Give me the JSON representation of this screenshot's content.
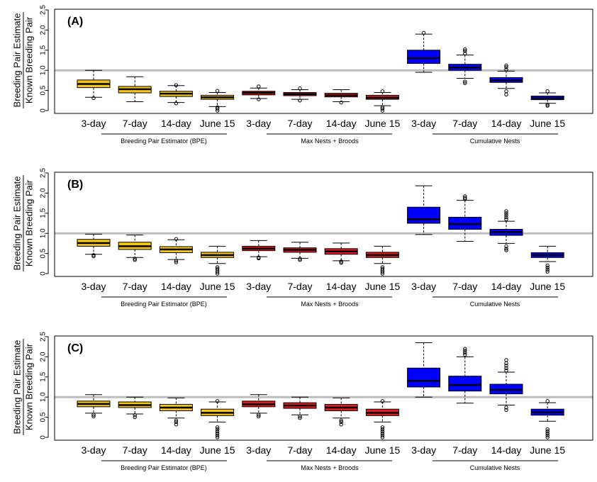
{
  "ylabel_top": "Breeding Pair Estimate",
  "ylabel_bottom": "Known Breeding Pair",
  "groups": [
    "Breeding Pair Estimator (BPE)",
    "Max Nests + Broods",
    "Cumulative Nests"
  ],
  "colors": {
    "bpe": "#f5c518",
    "max": "#e41a1c",
    "cum": "#0000ff",
    "reference_line": "#bdbdbd"
  },
  "chart_data": [
    {
      "type": "box",
      "panel": "(A)",
      "categories": [
        "3-day",
        "7-day",
        "14-day",
        "June 15",
        "3-day",
        "7-day",
        "14-day",
        "June 15",
        "3-day",
        "7-day",
        "14-day",
        "June 15"
      ],
      "ylim": [
        0,
        2.5
      ],
      "yticks": [
        "0",
        "0.5",
        "1.0",
        "1.5",
        "2.0",
        "2.5"
      ],
      "reference_line": 1.0,
      "box_colors": [
        "bpe",
        "bpe",
        "bpe",
        "bpe",
        "max",
        "max",
        "max",
        "max",
        "cum",
        "cum",
        "cum",
        "cum"
      ],
      "boxes": [
        {
          "wlo": 0.33,
          "q1": 0.57,
          "med": 0.66,
          "q3": 0.76,
          "whi": 1.0,
          "outliers": [
            0.31
          ]
        },
        {
          "wlo": 0.22,
          "q1": 0.44,
          "med": 0.53,
          "q3": 0.6,
          "whi": 0.84,
          "outliers": []
        },
        {
          "wlo": 0.2,
          "q1": 0.35,
          "med": 0.42,
          "q3": 0.48,
          "whi": 0.62,
          "outliers": [
            0.18,
            0.63
          ]
        },
        {
          "wlo": 0.1,
          "q1": 0.28,
          "med": 0.33,
          "q3": 0.38,
          "whi": 0.45,
          "outliers": [
            0.0,
            0.05,
            0.08,
            0.49
          ]
        },
        {
          "wlo": 0.3,
          "q1": 0.39,
          "med": 0.44,
          "q3": 0.48,
          "whi": 0.56,
          "outliers": [
            0.28,
            0.6
          ]
        },
        {
          "wlo": 0.28,
          "q1": 0.37,
          "med": 0.41,
          "q3": 0.45,
          "whi": 0.52,
          "outliers": [
            0.25,
            0.55
          ]
        },
        {
          "wlo": 0.22,
          "q1": 0.34,
          "med": 0.38,
          "q3": 0.43,
          "whi": 0.52,
          "outliers": [
            0.2
          ]
        },
        {
          "wlo": 0.12,
          "q1": 0.28,
          "med": 0.32,
          "q3": 0.38,
          "whi": 0.45,
          "outliers": [
            0.0,
            0.05,
            0.08,
            0.48
          ]
        },
        {
          "wlo": 0.95,
          "q1": 1.17,
          "med": 1.3,
          "q3": 1.5,
          "whi": 1.9,
          "outliers": [
            1.93
          ]
        },
        {
          "wlo": 0.8,
          "q1": 1.0,
          "med": 1.07,
          "q3": 1.15,
          "whi": 1.38,
          "outliers": [
            0.68,
            0.72,
            1.42,
            1.48,
            1.52
          ]
        },
        {
          "wlo": 0.55,
          "q1": 0.7,
          "med": 0.75,
          "q3": 0.82,
          "whi": 0.98,
          "outliers": [
            0.4,
            0.48,
            1.02,
            1.08,
            1.12
          ]
        },
        {
          "wlo": 0.18,
          "q1": 0.27,
          "med": 0.31,
          "q3": 0.36,
          "whi": 0.44,
          "outliers": [
            0.12,
            0.15,
            0.48
          ]
        }
      ]
    },
    {
      "type": "box",
      "panel": "(B)",
      "categories": [
        "3-day",
        "7-day",
        "14-day",
        "June 15",
        "3-day",
        "7-day",
        "14-day",
        "June 15",
        "3-day",
        "7-day",
        "14-day",
        "June 15"
      ],
      "ylim": [
        0,
        2.5
      ],
      "yticks": [
        "0",
        "0.5",
        "1.0",
        "1.5",
        "2.0",
        "2.5"
      ],
      "reference_line": 1.0,
      "box_colors": [
        "bpe",
        "bpe",
        "bpe",
        "bpe",
        "max",
        "max",
        "max",
        "max",
        "cum",
        "cum",
        "cum",
        "cum"
      ],
      "boxes": [
        {
          "wlo": 0.48,
          "q1": 0.68,
          "med": 0.76,
          "q3": 0.85,
          "whi": 0.98,
          "outliers": [
            0.43,
            0.46
          ]
        },
        {
          "wlo": 0.4,
          "q1": 0.6,
          "med": 0.68,
          "q3": 0.78,
          "whi": 0.96,
          "outliers": [
            0.34,
            0.37
          ]
        },
        {
          "wlo": 0.35,
          "q1": 0.52,
          "med": 0.6,
          "q3": 0.67,
          "whi": 0.84,
          "outliers": [
            0.28,
            0.32,
            0.86
          ]
        },
        {
          "wlo": 0.25,
          "q1": 0.4,
          "med": 0.46,
          "q3": 0.53,
          "whi": 0.68,
          "outliers": [
            0.0,
            0.04,
            0.08,
            0.12,
            0.16
          ]
        },
        {
          "wlo": 0.42,
          "q1": 0.57,
          "med": 0.62,
          "q3": 0.68,
          "whi": 0.82,
          "outliers": [
            0.38,
            0.4
          ]
        },
        {
          "wlo": 0.38,
          "q1": 0.53,
          "med": 0.59,
          "q3": 0.64,
          "whi": 0.78,
          "outliers": [
            0.34,
            0.37
          ]
        },
        {
          "wlo": 0.32,
          "q1": 0.48,
          "med": 0.55,
          "q3": 0.62,
          "whi": 0.76,
          "outliers": [
            0.27,
            0.3
          ]
        },
        {
          "wlo": 0.25,
          "q1": 0.4,
          "med": 0.46,
          "q3": 0.53,
          "whi": 0.68,
          "outliers": [
            0.0,
            0.04,
            0.08,
            0.12,
            0.16
          ]
        },
        {
          "wlo": 0.97,
          "q1": 1.25,
          "med": 1.35,
          "q3": 1.65,
          "whi": 2.18,
          "outliers": []
        },
        {
          "wlo": 0.8,
          "q1": 1.1,
          "med": 1.23,
          "q3": 1.4,
          "whi": 1.82,
          "outliers": [
            1.85,
            1.88,
            1.92
          ]
        },
        {
          "wlo": 0.75,
          "q1": 0.95,
          "med": 1.03,
          "q3": 1.1,
          "whi": 1.3,
          "outliers": [
            0.58,
            0.62,
            0.68,
            1.35,
            1.4,
            1.45,
            1.5,
            1.55
          ]
        },
        {
          "wlo": 0.3,
          "q1": 0.4,
          "med": 0.46,
          "q3": 0.52,
          "whi": 0.68,
          "outliers": [
            0.05,
            0.1,
            0.15,
            0.2
          ]
        }
      ]
    },
    {
      "type": "box",
      "panel": "(C)",
      "categories": [
        "3-day",
        "7-day",
        "14-day",
        "June 15",
        "3-day",
        "7-day",
        "14-day",
        "June 15",
        "3-day",
        "7-day",
        "14-day",
        "June 15"
      ],
      "ylim": [
        0,
        2.5
      ],
      "yticks": [
        "0",
        "0.5",
        "1.0",
        "1.5",
        "2.0",
        "2.5"
      ],
      "reference_line": 1.0,
      "box_colors": [
        "bpe",
        "bpe",
        "bpe",
        "bpe",
        "max",
        "max",
        "max",
        "max",
        "cum",
        "cum",
        "cum",
        "cum"
      ],
      "boxes": [
        {
          "wlo": 0.6,
          "q1": 0.76,
          "med": 0.83,
          "q3": 0.9,
          "whi": 1.06,
          "outliers": [
            0.52,
            0.56
          ]
        },
        {
          "wlo": 0.58,
          "q1": 0.74,
          "med": 0.8,
          "q3": 0.88,
          "whi": 1.0,
          "outliers": [
            0.5,
            0.55
          ]
        },
        {
          "wlo": 0.48,
          "q1": 0.66,
          "med": 0.74,
          "q3": 0.82,
          "whi": 0.98,
          "outliers": [
            0.32,
            0.38,
            0.42
          ]
        },
        {
          "wlo": 0.38,
          "q1": 0.54,
          "med": 0.61,
          "q3": 0.7,
          "whi": 0.88,
          "outliers": [
            0.0,
            0.05,
            0.1,
            0.15,
            0.2,
            0.25,
            0.9
          ]
        },
        {
          "wlo": 0.6,
          "q1": 0.76,
          "med": 0.82,
          "q3": 0.9,
          "whi": 1.06,
          "outliers": [
            0.52,
            0.56
          ]
        },
        {
          "wlo": 0.56,
          "q1": 0.72,
          "med": 0.79,
          "q3": 0.86,
          "whi": 1.0,
          "outliers": [
            0.48,
            0.52
          ]
        },
        {
          "wlo": 0.48,
          "q1": 0.66,
          "med": 0.74,
          "q3": 0.82,
          "whi": 0.98,
          "outliers": [
            0.32,
            0.38,
            0.42
          ]
        },
        {
          "wlo": 0.38,
          "q1": 0.54,
          "med": 0.61,
          "q3": 0.7,
          "whi": 0.88,
          "outliers": [
            0.0,
            0.05,
            0.1,
            0.15,
            0.2,
            0.25,
            0.9
          ]
        },
        {
          "wlo": 1.0,
          "q1": 1.25,
          "med": 1.4,
          "q3": 1.72,
          "whi": 2.35,
          "outliers": []
        },
        {
          "wlo": 0.85,
          "q1": 1.15,
          "med": 1.3,
          "q3": 1.52,
          "whi": 2.0,
          "outliers": [
            2.05,
            2.1,
            2.15,
            2.2
          ]
        },
        {
          "wlo": 0.8,
          "q1": 1.08,
          "med": 1.18,
          "q3": 1.32,
          "whi": 1.62,
          "outliers": [
            0.68,
            0.74,
            1.66,
            1.72,
            1.78,
            1.84,
            1.92
          ]
        },
        {
          "wlo": 0.4,
          "q1": 0.55,
          "med": 0.62,
          "q3": 0.7,
          "whi": 0.86,
          "outliers": [
            0.0,
            0.05,
            0.1,
            0.15,
            0.2,
            0.9
          ]
        }
      ]
    }
  ]
}
